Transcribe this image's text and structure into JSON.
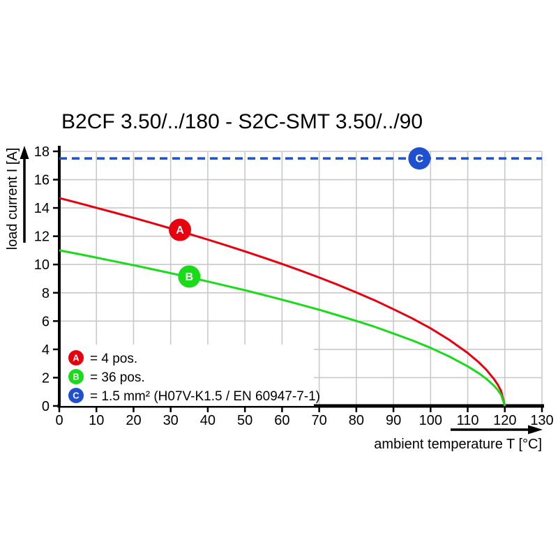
{
  "title": "B2CF 3.50/../180 - S2C-SMT 3.50/../90",
  "axes": {
    "y_label": "load current I [A]",
    "x_label": "ambient temperature T [°C]",
    "x_ticks": [
      0,
      10,
      20,
      30,
      40,
      50,
      60,
      70,
      80,
      90,
      100,
      110,
      120,
      130
    ],
    "y_ticks": [
      0,
      2,
      4,
      6,
      8,
      10,
      12,
      14,
      16,
      18
    ]
  },
  "colors": {
    "curve_a_red": "#e8000f",
    "curve_b_green": "#1adb1a",
    "line_c_blue": "#1e50cf",
    "grid": "#c9c9c9",
    "axis": "#000000",
    "background": "#ffffff"
  },
  "legend": {
    "items": [
      {
        "id": "A",
        "label": "= 4 pos.",
        "color": "#e8000f"
      },
      {
        "id": "B",
        "label": "= 36 pos.",
        "color": "#1adb1a"
      },
      {
        "id": "C",
        "label": "= 1.5 mm² (H07V-K1.5 / EN 60947-7-1)",
        "color": "#1e50cf"
      }
    ]
  },
  "chart_data": {
    "type": "line",
    "title": "B2CF 3.50/../180 - S2C-SMT 3.50/../90",
    "xlabel": "ambient temperature T [°C]",
    "ylabel": "load current I [A]",
    "xlim": [
      0,
      130
    ],
    "ylim": [
      0,
      18
    ],
    "grid": true,
    "legend_position": "lower-left",
    "series": [
      {
        "name": "A = 4 pos.",
        "style": "solid",
        "color": "#e8000f",
        "marker": {
          "letter": "A",
          "x": 32.5,
          "y": 12.45
        },
        "x": [
          0,
          5,
          10,
          15,
          20,
          25,
          30,
          35,
          40,
          45,
          50,
          55,
          60,
          65,
          70,
          75,
          80,
          85,
          90,
          95,
          100,
          105,
          110,
          113,
          115,
          117,
          118,
          119,
          120
        ],
        "y": [
          14.7,
          14.36,
          14.01,
          13.66,
          13.3,
          12.93,
          12.55,
          12.16,
          11.76,
          11.35,
          10.93,
          10.49,
          10.04,
          9.57,
          9.08,
          8.57,
          8.03,
          7.46,
          6.84,
          6.2,
          5.49,
          4.68,
          3.75,
          3.08,
          2.56,
          1.93,
          1.55,
          1.06,
          0
        ]
      },
      {
        "name": "B = 36 pos.",
        "style": "solid",
        "color": "#1adb1a",
        "marker": {
          "letter": "B",
          "x": 35,
          "y": 9.15
        },
        "x": [
          0,
          5,
          10,
          15,
          20,
          25,
          30,
          35,
          40,
          45,
          50,
          55,
          60,
          65,
          70,
          75,
          80,
          85,
          90,
          95,
          100,
          105,
          110,
          113,
          115,
          117,
          118,
          119,
          120
        ],
        "y": [
          11.0,
          10.75,
          10.49,
          10.22,
          9.95,
          9.67,
          9.39,
          9.1,
          8.8,
          8.49,
          8.18,
          7.85,
          7.51,
          7.16,
          6.8,
          6.41,
          6.01,
          5.59,
          5.12,
          4.64,
          4.11,
          3.5,
          2.8,
          2.31,
          1.92,
          1.45,
          1.16,
          0.79,
          0
        ]
      },
      {
        "name": "C = 1.5 mm² (H07V-K1.5 / EN 60947-7-1)",
        "style": "dashed",
        "color": "#1e50cf",
        "marker": {
          "letter": "C",
          "x": 97,
          "y": 17.5
        },
        "x": [
          0,
          130
        ],
        "y": [
          17.5,
          17.5
        ]
      }
    ]
  }
}
